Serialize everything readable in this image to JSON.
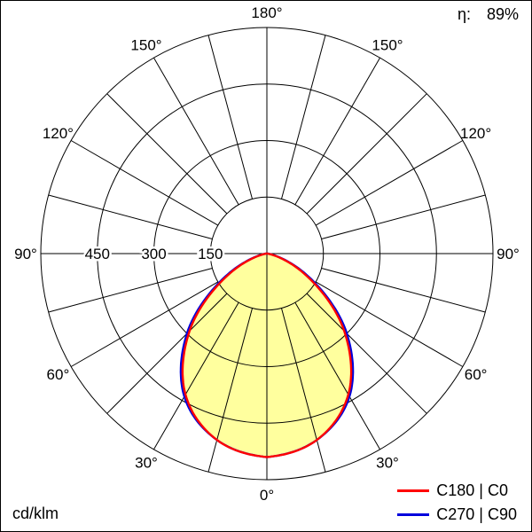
{
  "header": {
    "eta_label": "η:",
    "eta_value": "89%"
  },
  "footer": {
    "unit": "cd/klm"
  },
  "legend": {
    "items": [
      {
        "label": "C180 | C0",
        "color": "#ff0000"
      },
      {
        "label": "C270 | C90",
        "color": "#0000dd"
      }
    ]
  },
  "chart_data": {
    "type": "polar_intensity",
    "unit": "cd/klm",
    "max_value": 600,
    "center": {
      "x": 300,
      "y": 285
    },
    "radius_px": 255,
    "grid": {
      "ring_values": [
        150,
        300,
        450,
        600
      ],
      "labeled_rings": [
        "450",
        "300",
        "150"
      ],
      "angle_step_deg": 15,
      "angle_labels": [
        {
          "angle": 0,
          "label": "0°"
        },
        {
          "angle": 30,
          "label": "30°"
        },
        {
          "angle": 60,
          "label": "60°"
        },
        {
          "angle": 90,
          "label": "90°"
        },
        {
          "angle": 120,
          "label": "120°"
        },
        {
          "angle": 150,
          "label": "150°"
        },
        {
          "angle": 180,
          "label": "180°"
        }
      ]
    },
    "gamma_deg": [
      0,
      15,
      30,
      45,
      60,
      75,
      90
    ],
    "series": [
      {
        "name": "C180 | C0",
        "color": "#ff0000",
        "values": [
          540,
          512,
          432,
          290,
          128,
          24,
          0
        ]
      },
      {
        "name": "C270 | C90",
        "color": "#0000dd",
        "values": [
          540,
          512,
          438,
          300,
          136,
          27,
          0
        ]
      }
    ],
    "fill_color": "#ffff9e",
    "grid_color": "#000000",
    "legend_position": "bottom-right"
  }
}
